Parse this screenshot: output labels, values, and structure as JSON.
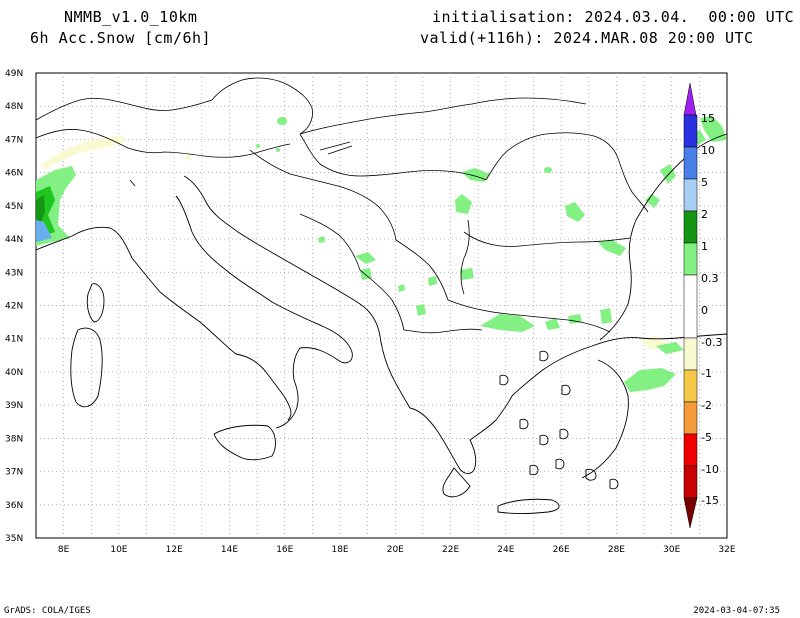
{
  "header": {
    "model": "NMMB_v1.0_10km",
    "field": "6h Acc.Snow [cm/6h]",
    "init": "initialisation: 2024.03.04.  00:00 UTC",
    "valid": "valid(+116h): 2024.MAR.08 20:00 UTC"
  },
  "axes": {
    "lon_min": 7,
    "lon_max": 32,
    "lat_min": 35,
    "lat_max": 49,
    "lat_labels": [
      "49N",
      "48N",
      "47N",
      "46N",
      "45N",
      "44N",
      "43N",
      "42N",
      "41N",
      "40N",
      "39N",
      "38N",
      "37N",
      "36N",
      "35N"
    ],
    "lon_labels": [
      "8E",
      "10E",
      "12E",
      "14E",
      "16E",
      "18E",
      "20E",
      "22E",
      "24E",
      "26E",
      "28E",
      "30E",
      "32E"
    ]
  },
  "legend": {
    "labels": [
      "15",
      "10",
      "5",
      "2",
      "1",
      "0.3",
      "0",
      "-0.3",
      "-1",
      "-2",
      "-5",
      "-10",
      "-15"
    ],
    "colors": [
      "#a020f0",
      "#2a30e0",
      "#4a7ee8",
      "#6aaef0",
      "#a8d0f6",
      "#149614",
      "#1fc61f",
      "#82f082",
      "#ffffff",
      "#fafad2",
      "#f5c848",
      "#f59b3c",
      "#f05a28",
      "#f00000",
      "#c80000",
      "#780000"
    ]
  },
  "footer": {
    "left": "GrADS: COLA/IGES",
    "right": "2024-03-04-07:35"
  }
}
